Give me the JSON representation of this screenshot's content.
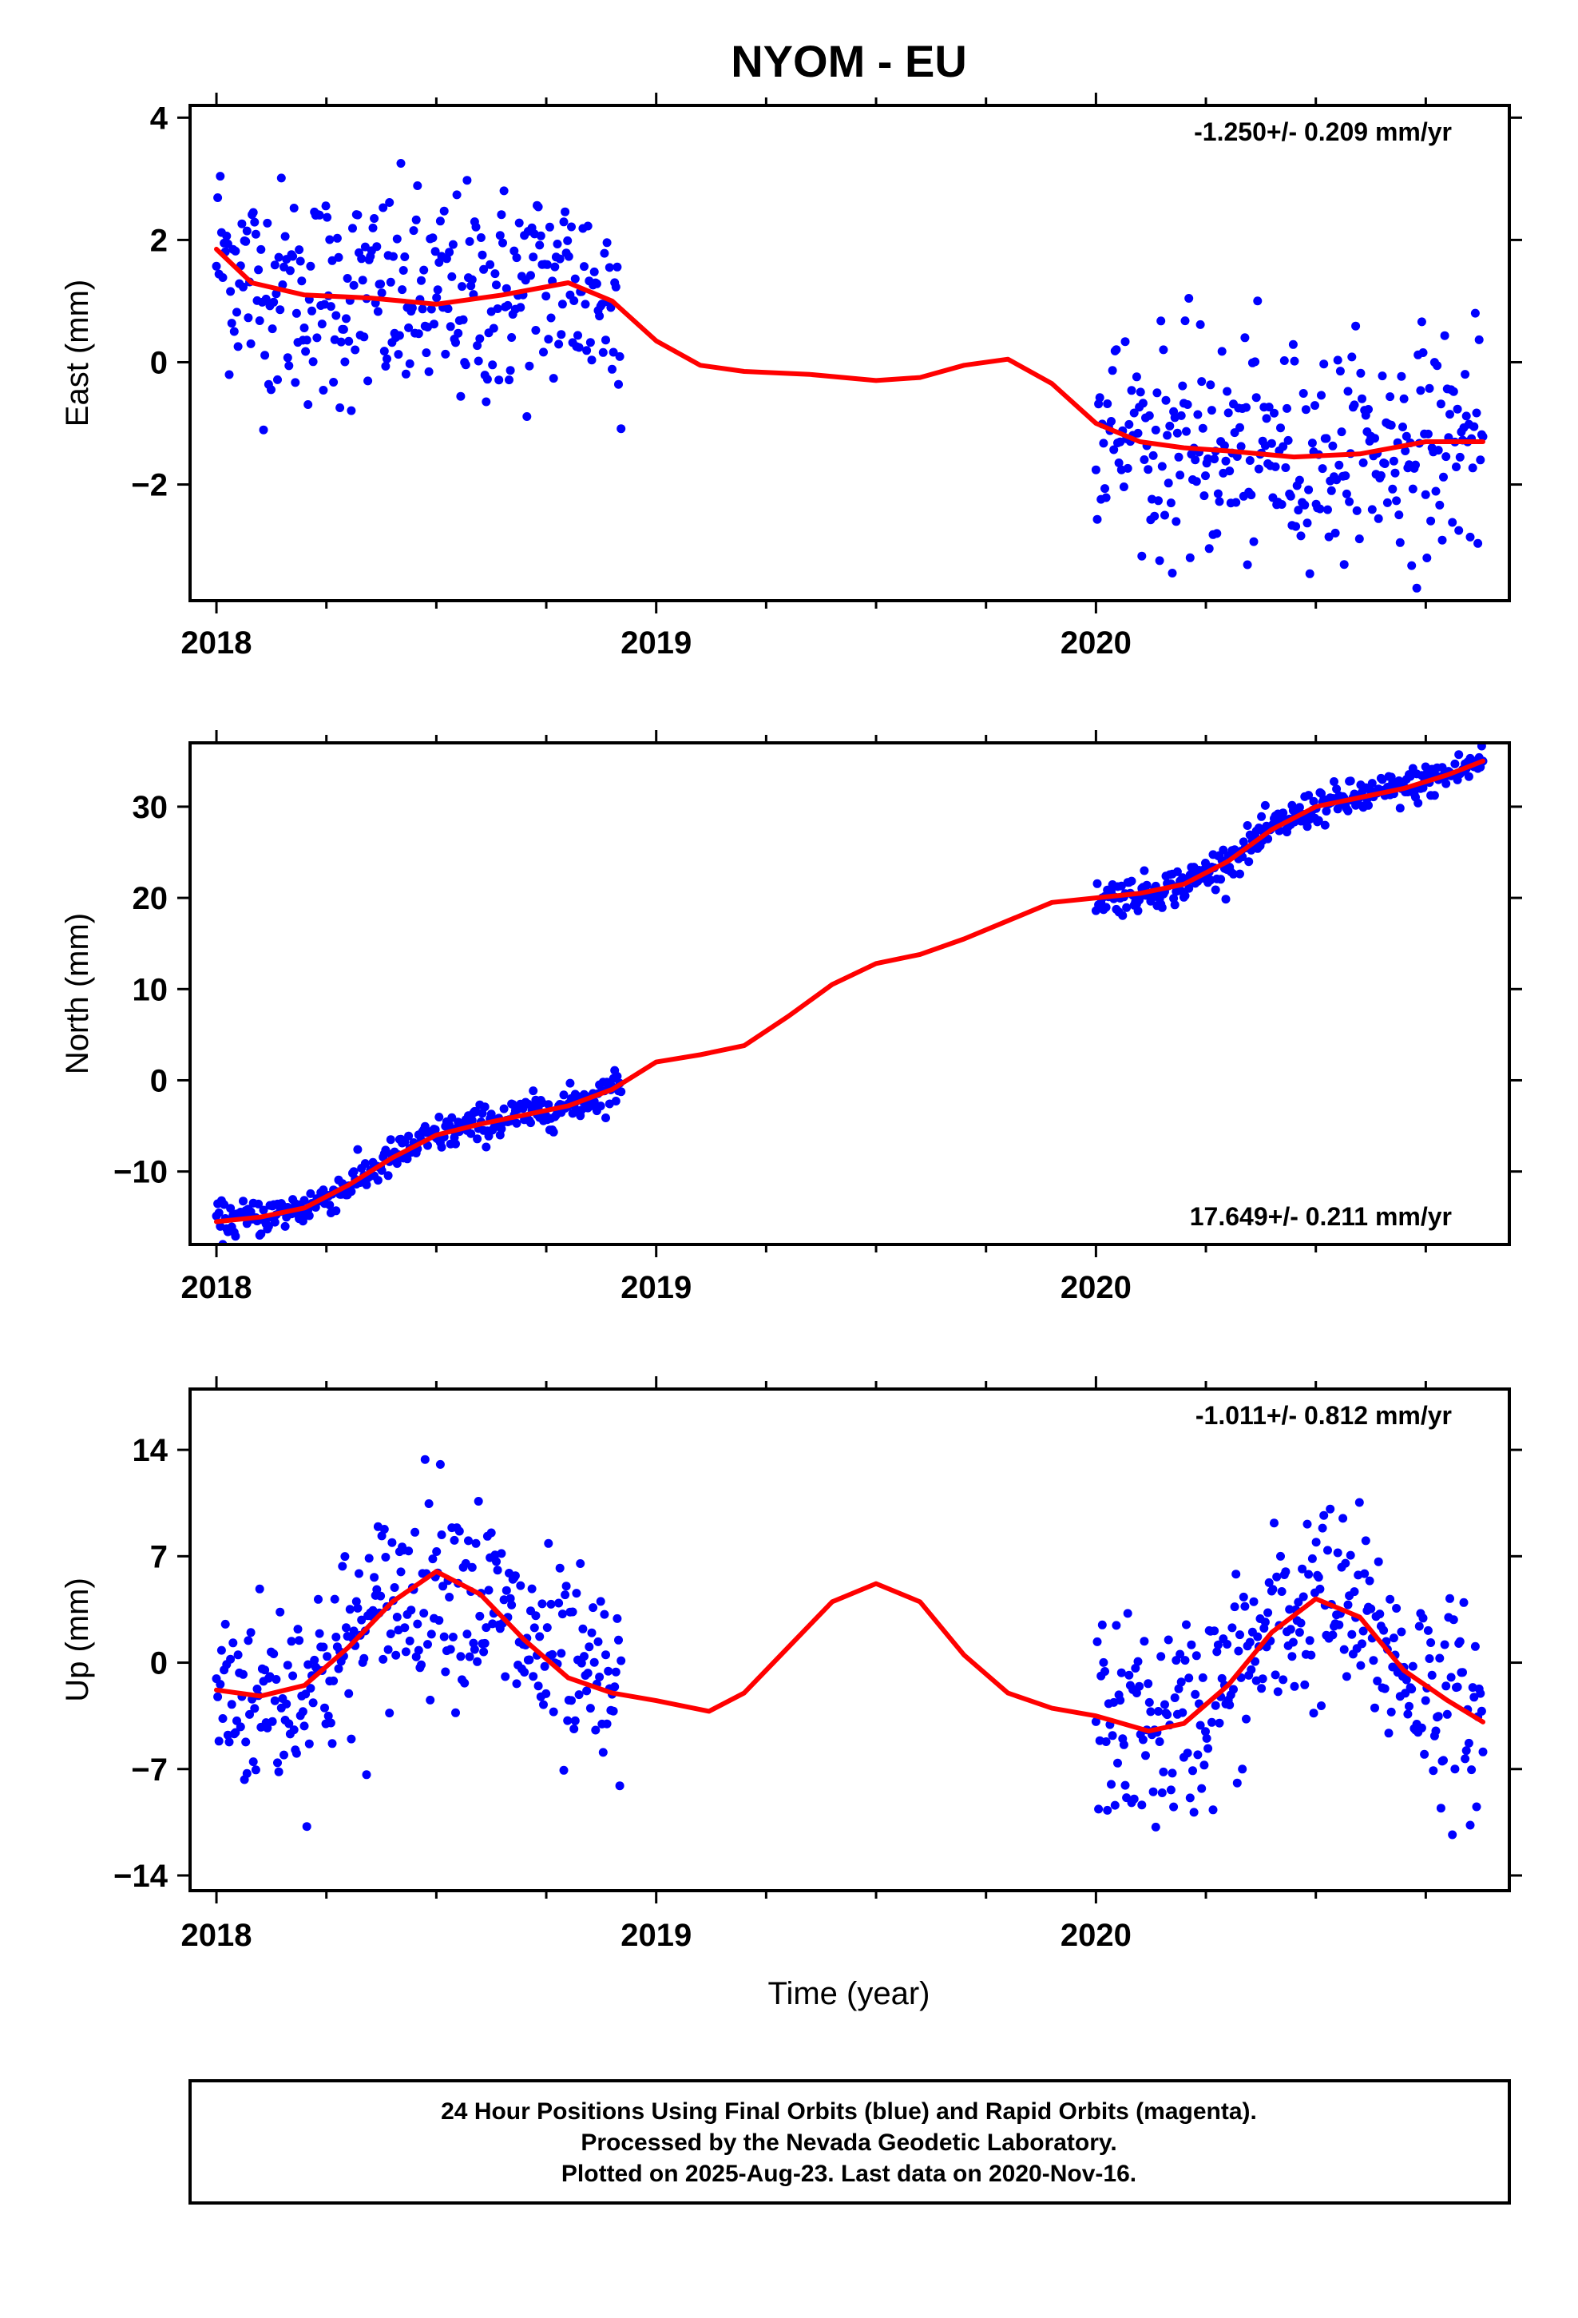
{
  "colors": {
    "points": "#0000ff",
    "model": "#ff0000",
    "frame": "#000000",
    "background": "#ffffff"
  },
  "chart_data": [
    {
      "type": "scatter",
      "id": "east",
      "title": "NYOM - EU",
      "ylabel": "East (mm)",
      "xlabel": "",
      "rate_text": "-1.250+/- 0.209 mm/yr",
      "rate_position": "top-right",
      "xlim": [
        2017.94,
        2020.94
      ],
      "ylim": [
        -3.9,
        4.2
      ],
      "x_ticks": [
        2018,
        2019,
        2020
      ],
      "x_tick_labels": [
        "2018",
        "2019",
        "2020"
      ],
      "y_ticks": [
        -2,
        0,
        2,
        4
      ],
      "y_tick_labels": [
        "−2",
        "0",
        "2",
        "4"
      ],
      "grid": false,
      "series": [
        {
          "role": "daily positions (final orbits)",
          "segments": [
            [
              2018.0,
              2018.92
            ],
            [
              2020.0,
              2020.88
            ]
          ]
        },
        {
          "role": "model fit",
          "curve": [
            [
              2018.0,
              1.85
            ],
            [
              2018.08,
              1.3
            ],
            [
              2018.2,
              1.1
            ],
            [
              2018.35,
              1.05
            ],
            [
              2018.5,
              0.95
            ],
            [
              2018.65,
              1.1
            ],
            [
              2018.8,
              1.3
            ],
            [
              2018.9,
              1.0
            ],
            [
              2019.0,
              0.35
            ],
            [
              2019.1,
              -0.05
            ],
            [
              2019.2,
              -0.15
            ],
            [
              2019.35,
              -0.2
            ],
            [
              2019.5,
              -0.3
            ],
            [
              2019.6,
              -0.25
            ],
            [
              2019.7,
              -0.05
            ],
            [
              2019.8,
              0.05
            ],
            [
              2019.9,
              -0.35
            ],
            [
              2020.0,
              -1.0
            ],
            [
              2020.1,
              -1.3
            ],
            [
              2020.2,
              -1.4
            ],
            [
              2020.3,
              -1.45
            ],
            [
              2020.45,
              -1.55
            ],
            [
              2020.6,
              -1.5
            ],
            [
              2020.75,
              -1.3
            ],
            [
              2020.88,
              -1.3
            ]
          ]
        }
      ]
    },
    {
      "type": "scatter",
      "id": "north",
      "title": "",
      "ylabel": "North (mm)",
      "xlabel": "",
      "rate_text": "17.649+/- 0.211 mm/yr",
      "rate_position": "bottom-right",
      "xlim": [
        2017.94,
        2020.94
      ],
      "ylim": [
        -18,
        37
      ],
      "x_ticks": [
        2018,
        2019,
        2020
      ],
      "x_tick_labels": [
        "2018",
        "2019",
        "2020"
      ],
      "y_ticks": [
        -10,
        0,
        10,
        20,
        30
      ],
      "y_tick_labels": [
        "−10",
        "0",
        "10",
        "20",
        "30"
      ],
      "grid": false,
      "series": [
        {
          "role": "daily positions (final orbits)",
          "segments": [
            [
              2018.0,
              2018.92
            ],
            [
              2020.0,
              2020.88
            ]
          ]
        },
        {
          "role": "model fit",
          "curve": [
            [
              2018.0,
              -15.5
            ],
            [
              2018.1,
              -15.0
            ],
            [
              2018.2,
              -14.0
            ],
            [
              2018.3,
              -11.5
            ],
            [
              2018.4,
              -8.5
            ],
            [
              2018.5,
              -6.0
            ],
            [
              2018.6,
              -4.8
            ],
            [
              2018.7,
              -3.8
            ],
            [
              2018.8,
              -2.8
            ],
            [
              2018.9,
              -1.0
            ],
            [
              2019.0,
              2.0
            ],
            [
              2019.1,
              2.8
            ],
            [
              2019.2,
              3.8
            ],
            [
              2019.3,
              7.0
            ],
            [
              2019.4,
              10.5
            ],
            [
              2019.5,
              12.8
            ],
            [
              2019.6,
              13.8
            ],
            [
              2019.7,
              15.5
            ],
            [
              2019.8,
              17.5
            ],
            [
              2019.9,
              19.5
            ],
            [
              2020.0,
              20.0
            ],
            [
              2020.1,
              20.5
            ],
            [
              2020.2,
              21.5
            ],
            [
              2020.3,
              24.0
            ],
            [
              2020.4,
              27.5
            ],
            [
              2020.5,
              30.0
            ],
            [
              2020.6,
              31.0
            ],
            [
              2020.7,
              32.0
            ],
            [
              2020.8,
              33.5
            ],
            [
              2020.88,
              35.0
            ]
          ]
        }
      ]
    },
    {
      "type": "scatter",
      "id": "up",
      "title": "",
      "ylabel": "Up (mm)",
      "xlabel": "Time (year)",
      "rate_text": "-1.011+/- 0.812 mm/yr",
      "rate_position": "top-right",
      "xlim": [
        2017.94,
        2020.94
      ],
      "ylim": [
        -15,
        18
      ],
      "x_ticks": [
        2018,
        2019,
        2020
      ],
      "x_tick_labels": [
        "2018",
        "2019",
        "2020"
      ],
      "y_ticks": [
        -14,
        -7,
        0,
        7,
        14
      ],
      "y_tick_labels": [
        "−14",
        "−7",
        "0",
        "7",
        "14"
      ],
      "grid": false,
      "series": [
        {
          "role": "daily positions (final orbits)",
          "segments": [
            [
              2018.0,
              2018.92
            ],
            [
              2020.0,
              2020.88
            ]
          ]
        },
        {
          "role": "model fit",
          "curve": [
            [
              2018.0,
              -1.8
            ],
            [
              2018.1,
              -2.2
            ],
            [
              2018.2,
              -1.5
            ],
            [
              2018.3,
              1.0
            ],
            [
              2018.4,
              4.0
            ],
            [
              2018.5,
              6.0
            ],
            [
              2018.6,
              4.5
            ],
            [
              2018.7,
              1.5
            ],
            [
              2018.8,
              -1.0
            ],
            [
              2018.9,
              -2.0
            ],
            [
              2019.0,
              -2.5
            ],
            [
              2019.12,
              -3.2
            ],
            [
              2019.2,
              -2.0
            ],
            [
              2019.3,
              1.0
            ],
            [
              2019.4,
              4.0
            ],
            [
              2019.5,
              5.2
            ],
            [
              2019.6,
              4.0
            ],
            [
              2019.7,
              0.5
            ],
            [
              2019.8,
              -2.0
            ],
            [
              2019.9,
              -3.0
            ],
            [
              2020.0,
              -3.5
            ],
            [
              2020.12,
              -4.5
            ],
            [
              2020.2,
              -4.0
            ],
            [
              2020.3,
              -1.5
            ],
            [
              2020.4,
              2.0
            ],
            [
              2020.5,
              4.2
            ],
            [
              2020.6,
              3.0
            ],
            [
              2020.7,
              -0.5
            ],
            [
              2020.8,
              -2.5
            ],
            [
              2020.88,
              -3.9
            ]
          ]
        }
      ]
    }
  ],
  "footer": {
    "line1": "24 Hour Positions Using Final Orbits (blue) and Rapid Orbits (magenta).",
    "line2": "Processed by the Nevada Geodetic Laboratory.",
    "line3": "Plotted on 2025-Aug-23. Last data on 2020-Nov-16."
  }
}
